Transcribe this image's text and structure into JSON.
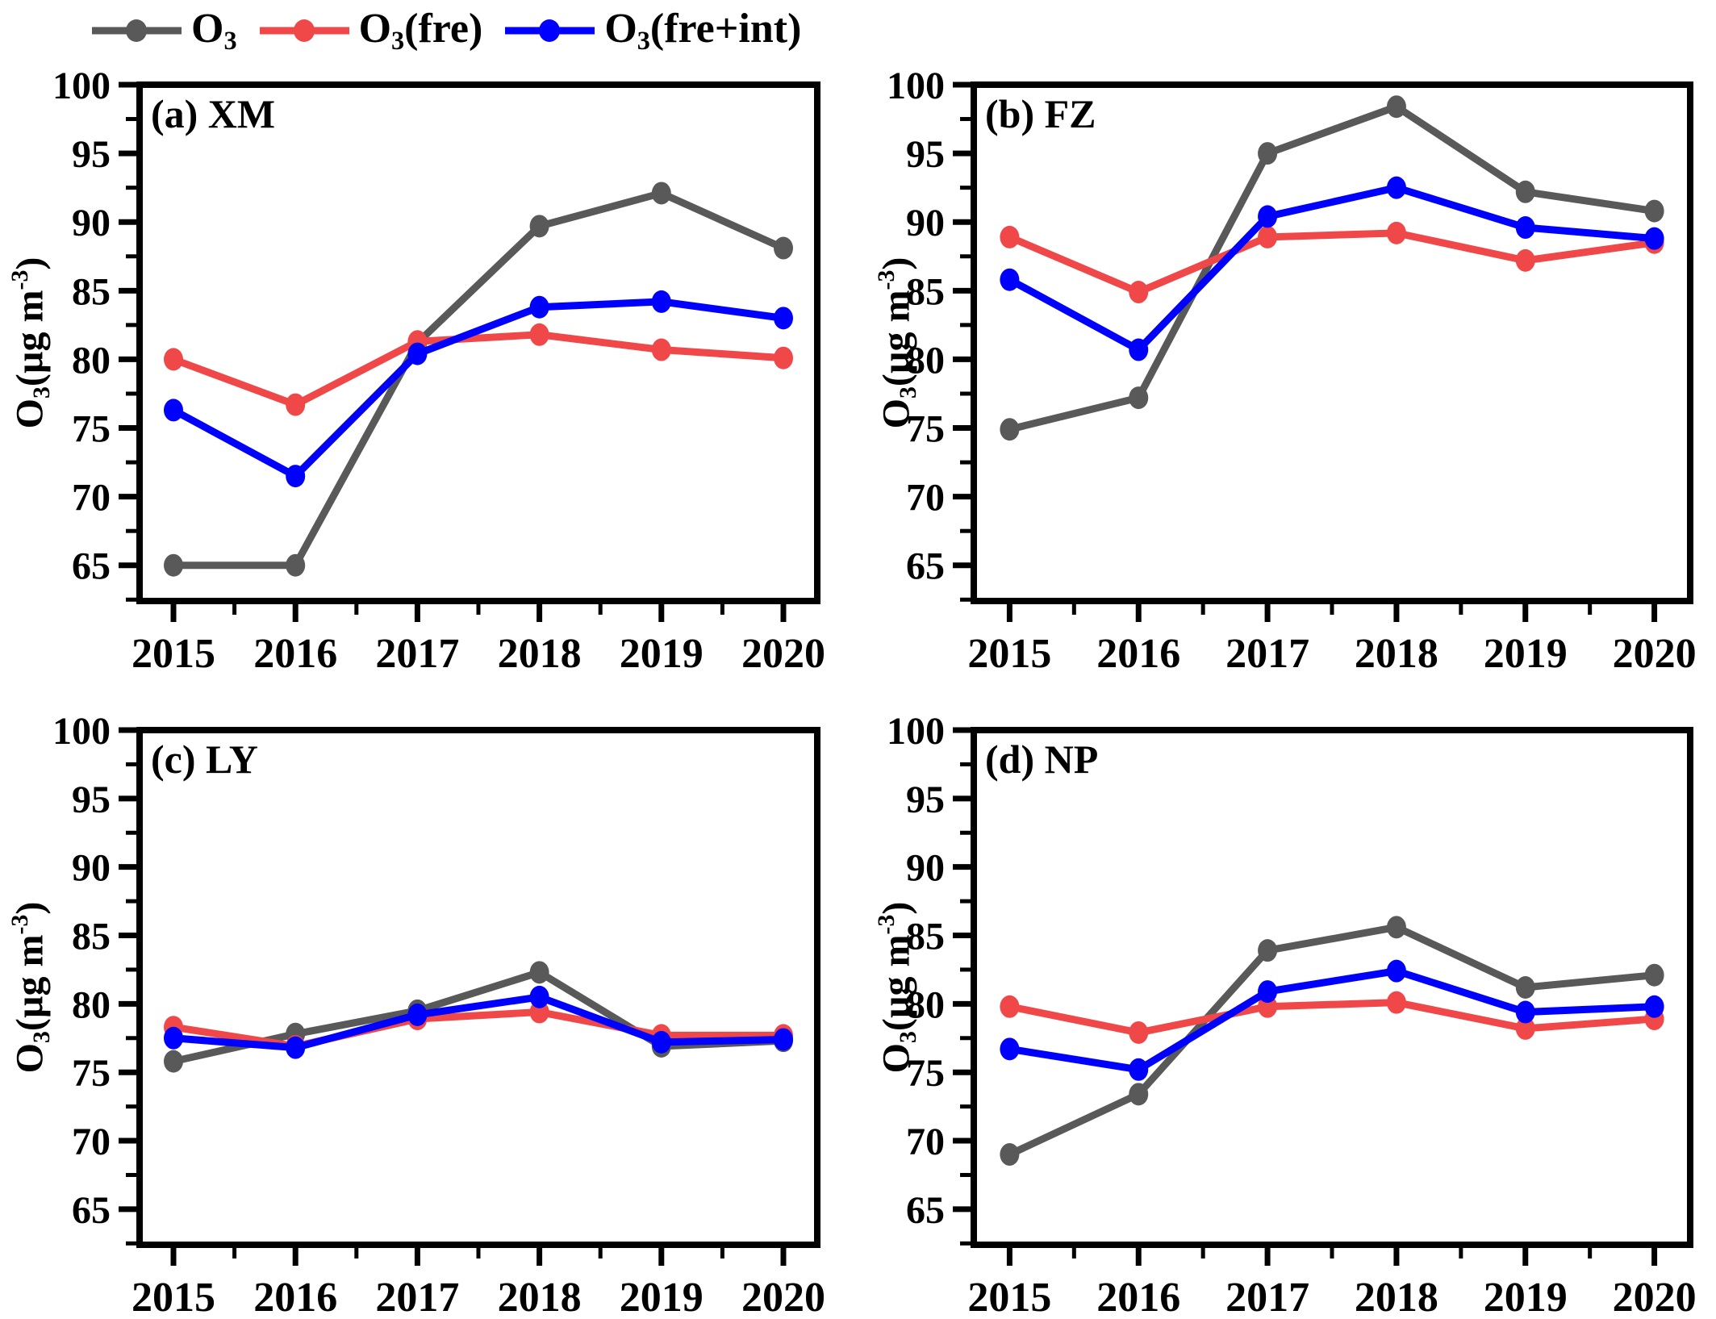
{
  "figure": {
    "background": "#FFFFFF"
  },
  "colors": {
    "o3": "#595959",
    "o3_fre": "#F04848",
    "o3_fre_int": "#0000FF",
    "axis": "#000000"
  },
  "legend": {
    "position": "top-left",
    "items": [
      {
        "base": "O",
        "sub": "3",
        "rest": "",
        "color_key": "o3"
      },
      {
        "base": "O",
        "sub": "3",
        "rest": "(fre)",
        "color_key": "o3_fre"
      },
      {
        "base": "O",
        "sub": "3",
        "rest": "(fre+int)",
        "color_key": "o3_fre_int"
      }
    ]
  },
  "ylabel": {
    "base": "O",
    "sub": "3",
    "unit_open": "(µg m",
    "sup": "-3",
    "unit_close": ")",
    "plain": "O3(µg m-3)"
  },
  "chart_data": [
    {
      "type": "line",
      "panel_label": "(a) XM",
      "station": "XM",
      "categories": [
        "2015",
        "2016",
        "2017",
        "2018",
        "2019",
        "2020"
      ],
      "xlabel": "",
      "ylabel": "O3(µg m-3)",
      "ylim": [
        62.4,
        100
      ],
      "yticks": [
        65,
        70,
        75,
        80,
        85,
        90,
        95,
        100
      ],
      "grid": false,
      "series": [
        {
          "name": "O3",
          "color_key": "o3",
          "values": [
            65.0,
            65.0,
            81.2,
            89.7,
            92.1,
            88.1
          ]
        },
        {
          "name": "O3(fre)",
          "color_key": "o3_fre",
          "values": [
            80.0,
            76.7,
            81.3,
            81.8,
            80.7,
            80.1
          ]
        },
        {
          "name": "O3(fre+int)",
          "color_key": "o3_fre_int",
          "values": [
            76.3,
            71.5,
            80.4,
            83.8,
            84.2,
            83.0
          ]
        }
      ]
    },
    {
      "type": "line",
      "panel_label": "(b) FZ",
      "station": "FZ",
      "categories": [
        "2015",
        "2016",
        "2017",
        "2018",
        "2019",
        "2020"
      ],
      "xlabel": "",
      "ylabel": "O3(µg m-3)",
      "ylim": [
        62.4,
        100
      ],
      "yticks": [
        65,
        70,
        75,
        80,
        85,
        90,
        95,
        100
      ],
      "grid": false,
      "series": [
        {
          "name": "O3",
          "color_key": "o3",
          "values": [
            74.9,
            77.2,
            95.0,
            98.4,
            92.2,
            90.8
          ]
        },
        {
          "name": "O3(fre)",
          "color_key": "o3_fre",
          "values": [
            88.9,
            84.9,
            88.9,
            89.2,
            87.2,
            88.5
          ]
        },
        {
          "name": "O3(fre+int)",
          "color_key": "o3_fre_int",
          "values": [
            85.8,
            80.7,
            90.4,
            92.5,
            89.6,
            88.8
          ]
        }
      ]
    },
    {
      "type": "line",
      "panel_label": "(c) LY",
      "station": "LY",
      "categories": [
        "2015",
        "2016",
        "2017",
        "2018",
        "2019",
        "2020"
      ],
      "xlabel": "",
      "ylabel": "O3(µg m-3)",
      "ylim": [
        62.4,
        100
      ],
      "yticks": [
        65,
        70,
        75,
        80,
        85,
        90,
        95,
        100
      ],
      "grid": false,
      "series": [
        {
          "name": "O3",
          "color_key": "o3",
          "values": [
            75.8,
            77.8,
            79.5,
            82.3,
            76.9,
            77.3
          ]
        },
        {
          "name": "O3(fre)",
          "color_key": "o3_fre",
          "values": [
            78.3,
            76.9,
            78.9,
            79.4,
            77.7,
            77.7
          ]
        },
        {
          "name": "O3(fre+int)",
          "color_key": "o3_fre_int",
          "values": [
            77.5,
            76.8,
            79.2,
            80.5,
            77.2,
            77.4
          ]
        }
      ]
    },
    {
      "type": "line",
      "panel_label": "(d) NP",
      "station": "NP",
      "categories": [
        "2015",
        "2016",
        "2017",
        "2018",
        "2019",
        "2020"
      ],
      "xlabel": "",
      "ylabel": "O3(µg m-3)",
      "ylim": [
        62.4,
        100
      ],
      "yticks": [
        65,
        70,
        75,
        80,
        85,
        90,
        95,
        100
      ],
      "grid": false,
      "series": [
        {
          "name": "O3",
          "color_key": "o3",
          "values": [
            69.0,
            73.4,
            83.9,
            85.6,
            81.2,
            82.1
          ]
        },
        {
          "name": "O3(fre)",
          "color_key": "o3_fre",
          "values": [
            79.8,
            77.9,
            79.8,
            80.1,
            78.2,
            78.9
          ]
        },
        {
          "name": "O3(fre+int)",
          "color_key": "o3_fre_int",
          "values": [
            76.7,
            75.2,
            80.9,
            82.4,
            79.4,
            79.8
          ]
        }
      ]
    }
  ]
}
